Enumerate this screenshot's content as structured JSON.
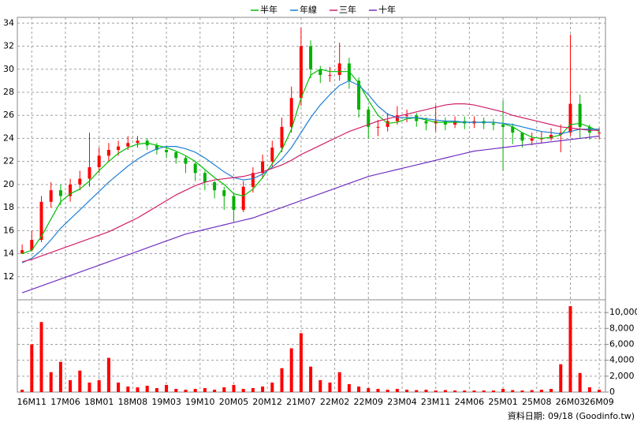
{
  "chart_data": {
    "type": "candlestick",
    "x": [
      -2,
      0,
      2,
      4,
      6,
      8,
      10,
      12,
      14,
      16,
      18,
      20,
      22,
      24,
      26,
      28,
      30,
      32,
      34,
      36,
      38,
      40,
      42,
      44,
      46,
      48,
      50,
      52,
      54,
      56,
      58,
      60,
      62,
      64,
      66,
      68,
      70,
      72,
      74,
      76,
      78,
      80,
      82,
      84,
      86,
      88,
      90,
      92,
      94,
      96,
      98,
      100,
      102,
      104,
      106,
      108,
      110,
      112,
      114,
      116,
      118
    ],
    "open": [
      14.0,
      14.3,
      15.2,
      18.5,
      19.5,
      19.0,
      20.0,
      20.5,
      21.5,
      22.5,
      23.0,
      23.3,
      23.6,
      23.8,
      23.4,
      23.0,
      22.8,
      22.3,
      21.8,
      21.0,
      20.2,
      19.5,
      19.0,
      17.8,
      19.8,
      21.0,
      22.0,
      23.2,
      25.0,
      27.5,
      32.0,
      30.0,
      29.5,
      29.5,
      30.5,
      29.0,
      26.5,
      25.0,
      25.0,
      25.5,
      26.0,
      26.0,
      25.5,
      25.3,
      25.5,
      25.2,
      25.5,
      25.3,
      25.5,
      25.3,
      25.2,
      25.0,
      24.5,
      23.8,
      24.0,
      24.0,
      24.3,
      24.5,
      27.0,
      25.0,
      24.5
    ],
    "high": [
      14.8,
      16.0,
      19.0,
      20.2,
      20.0,
      20.5,
      21.2,
      24.5,
      23.2,
      23.6,
      23.8,
      24.2,
      24.2,
      24.0,
      23.6,
      23.2,
      22.9,
      22.5,
      21.9,
      21.2,
      20.3,
      19.8,
      19.3,
      20.3,
      21.5,
      22.6,
      23.8,
      25.8,
      28.5,
      33.6,
      32.5,
      30.3,
      30.2,
      32.3,
      31.0,
      29.3,
      26.8,
      25.6,
      26.2,
      26.8,
      26.5,
      26.2,
      25.8,
      26.9,
      25.8,
      25.9,
      25.9,
      25.9,
      25.8,
      25.7,
      27.3,
      25.3,
      24.5,
      24.5,
      24.6,
      24.9,
      25.2,
      33.0,
      27.8,
      25.2,
      24.9
    ],
    "low": [
      14.0,
      14.2,
      15.0,
      18.0,
      18.2,
      18.5,
      19.5,
      19.8,
      21.0,
      22.0,
      22.5,
      23.0,
      23.2,
      23.0,
      22.6,
      22.3,
      21.8,
      21.0,
      20.3,
      19.5,
      18.8,
      17.8,
      16.8,
      17.6,
      19.3,
      20.5,
      21.5,
      22.8,
      24.5,
      26.8,
      29.2,
      28.8,
      28.9,
      29.0,
      28.3,
      25.8,
      24.0,
      24.2,
      24.6,
      25.2,
      25.4,
      25.0,
      24.7,
      24.6,
      24.7,
      24.9,
      24.8,
      24.9,
      24.8,
      24.7,
      21.2,
      23.5,
      23.2,
      23.4,
      23.6,
      23.8,
      22.8,
      24.2,
      24.0,
      23.9,
      23.9
    ],
    "close": [
      14.3,
      15.2,
      18.5,
      19.5,
      19.0,
      20.0,
      20.5,
      21.5,
      22.5,
      23.0,
      23.3,
      23.6,
      23.8,
      23.4,
      23.0,
      22.8,
      22.3,
      21.8,
      21.0,
      20.2,
      19.5,
      19.0,
      17.8,
      19.8,
      21.0,
      22.0,
      23.2,
      25.0,
      27.5,
      32.0,
      30.0,
      29.5,
      29.5,
      30.5,
      29.0,
      26.5,
      25.0,
      25.0,
      25.5,
      26.0,
      26.0,
      25.5,
      25.3,
      25.5,
      25.2,
      25.5,
      25.3,
      25.5,
      25.3,
      25.2,
      25.0,
      24.5,
      23.8,
      24.0,
      24.0,
      24.3,
      24.5,
      27.0,
      25.0,
      24.5,
      24.5
    ],
    "volume": [
      300,
      6000,
      8800,
      2500,
      3800,
      1500,
      2700,
      1200,
      1500,
      4300,
      1200,
      700,
      600,
      800,
      500,
      900,
      400,
      300,
      400,
      500,
      300,
      600,
      900,
      400,
      500,
      700,
      1200,
      3000,
      5500,
      7400,
      3200,
      1500,
      1200,
      2500,
      1000,
      700,
      500,
      400,
      300,
      400,
      300,
      250,
      300,
      200,
      250,
      200,
      200,
      200,
      200,
      200,
      400,
      250,
      200,
      250,
      300,
      400,
      3500,
      10800,
      2400,
      600,
      300
    ],
    "up_color": "#ff0000",
    "down_color": "#00b000",
    "volume_color": "#ff0000",
    "series": [
      {
        "name": "半年",
        "color": "#00c000",
        "values": [
          14.0,
          14.3,
          15.5,
          17.0,
          18.5,
          19.2,
          19.6,
          20.3,
          21.2,
          22.0,
          22.7,
          23.2,
          23.5,
          23.6,
          23.4,
          23.2,
          22.9,
          22.5,
          22.0,
          21.3,
          20.6,
          20.0,
          19.2,
          19.0,
          19.6,
          20.6,
          21.8,
          23.0,
          24.8,
          27.5,
          29.5,
          30.0,
          29.8,
          29.8,
          29.8,
          28.8,
          27.3,
          26.0,
          25.3,
          25.4,
          25.7,
          25.8,
          25.6,
          25.4,
          25.4,
          25.4,
          25.4,
          25.4,
          25.4,
          25.4,
          25.3,
          25.0,
          24.5,
          24.1,
          24.0,
          24.1,
          24.3,
          25.2,
          25.3,
          25.0,
          24.6
        ]
      },
      {
        "name": "年線",
        "color": "#1e7fd6",
        "values": [
          13.2,
          13.6,
          14.3,
          15.2,
          16.2,
          17.0,
          17.8,
          18.6,
          19.4,
          20.2,
          20.9,
          21.6,
          22.2,
          22.7,
          23.1,
          23.3,
          23.3,
          23.1,
          22.8,
          22.3,
          21.7,
          21.1,
          20.6,
          20.4,
          20.5,
          20.9,
          21.5,
          22.2,
          23.2,
          24.5,
          25.8,
          26.9,
          27.8,
          28.6,
          29.0,
          28.6,
          27.8,
          26.8,
          26.1,
          25.8,
          25.8,
          25.8,
          25.7,
          25.6,
          25.5,
          25.5,
          25.4,
          25.4,
          25.4,
          25.4,
          25.3,
          25.2,
          25.0,
          24.8,
          24.6,
          24.5,
          24.4,
          24.6,
          24.8,
          24.8,
          24.8
        ]
      },
      {
        "name": "三年",
        "color": "#d0206a",
        "values": [
          13.3,
          13.5,
          13.8,
          14.1,
          14.4,
          14.7,
          15.0,
          15.3,
          15.6,
          15.9,
          16.3,
          16.7,
          17.1,
          17.6,
          18.1,
          18.6,
          19.1,
          19.5,
          19.9,
          20.2,
          20.4,
          20.5,
          20.6,
          20.7,
          20.9,
          21.1,
          21.4,
          21.7,
          22.1,
          22.6,
          23.0,
          23.4,
          23.8,
          24.2,
          24.6,
          24.9,
          25.2,
          25.5,
          25.7,
          25.9,
          26.1,
          26.3,
          26.5,
          26.7,
          26.9,
          27.0,
          27.0,
          26.9,
          26.7,
          26.5,
          26.3,
          26.0,
          25.8,
          25.6,
          25.4,
          25.2,
          25.0,
          24.9,
          24.8,
          24.7,
          24.7
        ]
      },
      {
        "name": "十年",
        "color": "#7030c0",
        "values": [
          10.6,
          10.9,
          11.2,
          11.5,
          11.8,
          12.1,
          12.4,
          12.7,
          13.0,
          13.3,
          13.6,
          13.9,
          14.2,
          14.5,
          14.8,
          15.1,
          15.4,
          15.7,
          15.9,
          16.1,
          16.3,
          16.5,
          16.7,
          16.9,
          17.1,
          17.4,
          17.7,
          18.0,
          18.3,
          18.6,
          18.9,
          19.2,
          19.5,
          19.8,
          20.1,
          20.4,
          20.7,
          20.9,
          21.1,
          21.3,
          21.5,
          21.7,
          21.9,
          22.1,
          22.3,
          22.5,
          22.7,
          22.9,
          23.0,
          23.1,
          23.2,
          23.3,
          23.4,
          23.5,
          23.6,
          23.7,
          23.8,
          23.9,
          24.0,
          24.1,
          24.2
        ]
      }
    ],
    "xlim": [
      -3,
      119.3
    ],
    "xticks": [
      {
        "value": 0,
        "label": "16M11"
      },
      {
        "value": 7,
        "label": "17M06"
      },
      {
        "value": 14,
        "label": "18M01"
      },
      {
        "value": 21,
        "label": "18M08"
      },
      {
        "value": 28,
        "label": "19M03"
      },
      {
        "value": 35,
        "label": "19M10"
      },
      {
        "value": 42,
        "label": "20M05"
      },
      {
        "value": 49,
        "label": "20M12"
      },
      {
        "value": 56,
        "label": "21M07"
      },
      {
        "value": 63,
        "label": "22M02"
      },
      {
        "value": 70,
        "label": "22M09"
      },
      {
        "value": 77,
        "label": "23M04"
      },
      {
        "value": 84,
        "label": "23M11"
      },
      {
        "value": 91,
        "label": "24M06"
      },
      {
        "value": 98,
        "label": "25M01"
      },
      {
        "value": 105,
        "label": "25M08"
      },
      {
        "value": 112,
        "label": "26M03"
      },
      {
        "value": 118,
        "label": "26M09"
      }
    ],
    "ylim": [
      10,
      34.5
    ],
    "yticks": [
      12,
      14,
      16,
      18,
      20,
      22,
      24,
      26,
      28,
      30,
      32,
      34
    ],
    "y2lim": [
      0,
      11600
    ],
    "y2ticks": [
      0,
      {
        "value": 2000,
        "label": "2,000"
      },
      {
        "value": 4000,
        "label": "4,000"
      },
      {
        "value": 6000,
        "label": "6,000"
      },
      {
        "value": 8000,
        "label": "8,000"
      },
      {
        "value": 10000,
        "label": "10,000"
      }
    ],
    "grid": true,
    "legend": "top",
    "source": "資料日期: 09/18 (Goodinfo.tw)"
  }
}
